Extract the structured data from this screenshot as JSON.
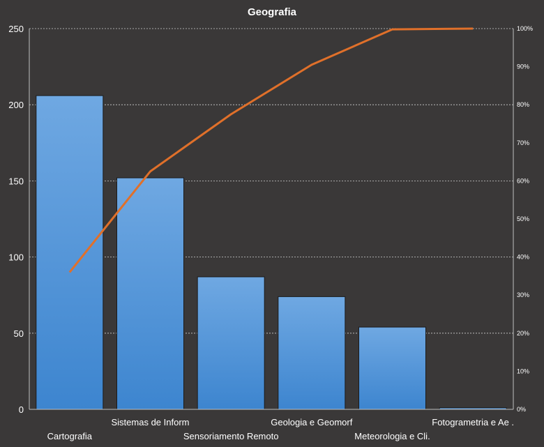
{
  "chart_data": {
    "type": "bar",
    "title": "Geografia",
    "categories": [
      "Cartografia",
      "Sistemas de Inform",
      "Sensoriamento  Remoto",
      "Geologia e Geomorf",
      "Meteorologia  e Cli.",
      "Fotogrametria  e Ae ."
    ],
    "series": [
      {
        "type": "bar",
        "values": [
          206,
          152,
          87,
          74,
          54,
          1
        ]
      },
      {
        "type": "line",
        "axis": "secondary",
        "values": [
          0.36,
          0.625,
          0.775,
          0.905,
          0.998,
          1.0
        ]
      }
    ],
    "ylim": [
      0,
      250
    ],
    "yticks": [
      "0",
      "50",
      "100",
      "150",
      "200",
      "250"
    ],
    "y2lim": [
      0,
      1
    ],
    "y2ticks": [
      "0%",
      "10%",
      "20%",
      "30%",
      "40%",
      "50%",
      "60%",
      "70%",
      "80%",
      "90%",
      "100%"
    ],
    "grid": true,
    "legend": "none",
    "colors": {
      "background": "#3a3838",
      "bar": "#4a90d9",
      "bar_light": "#6fa8e2",
      "line": "#e0702a",
      "text": "#ffffff"
    }
  }
}
